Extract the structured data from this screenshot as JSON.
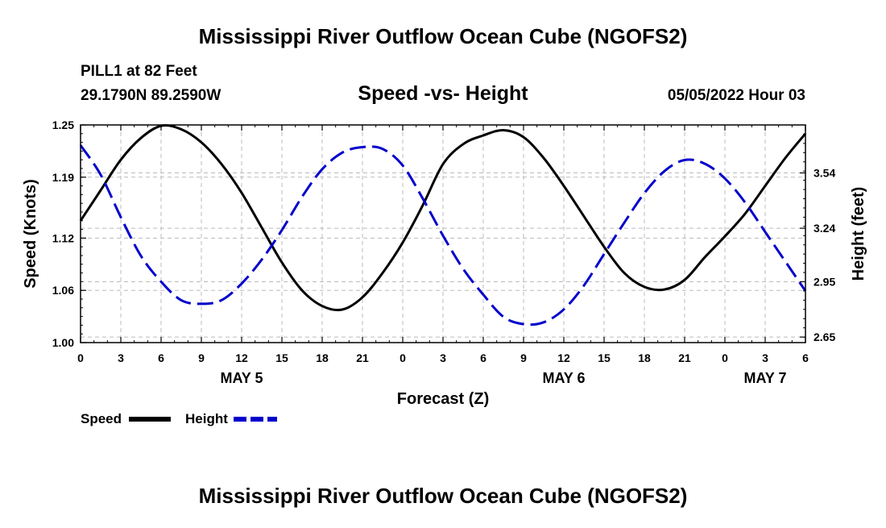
{
  "page": {
    "title": "Mississippi River Outflow Ocean Cube (NGOFS2)",
    "footer_title": "Mississippi River Outflow Ocean Cube (NGOFS2)"
  },
  "station": {
    "name_line": "PILL1 at 82 Feet",
    "coords_line": "29.1790N  89.2590W",
    "datetime": "05/05/2022 Hour 03"
  },
  "chart_data": {
    "type": "line",
    "title": "Speed -vs- Height",
    "xlabel": "Forecast (Z)",
    "ylabel_left": "Speed (Knots)",
    "ylabel_right": "Height (feet)",
    "x_range": [
      0,
      54
    ],
    "x_tick_values": [
      0,
      3,
      6,
      9,
      12,
      15,
      18,
      21,
      24,
      27,
      30,
      33,
      36,
      39,
      42,
      45,
      48,
      51,
      54
    ],
    "x_tick_labels": [
      "0",
      "3",
      "6",
      "9",
      "12",
      "15",
      "18",
      "21",
      "0",
      "3",
      "6",
      "9",
      "12",
      "15",
      "18",
      "21",
      "0",
      "3",
      "6"
    ],
    "date_labels": [
      {
        "label": "MAY 5",
        "at": 12
      },
      {
        "label": "MAY 6",
        "at": 36
      },
      {
        "label": "MAY 7",
        "at": 51
      }
    ],
    "y_left": {
      "range": [
        1.0,
        1.25
      ],
      "ticks": [
        1.0,
        1.06,
        1.12,
        1.19,
        1.25
      ],
      "tick_labels": [
        "1.00",
        "1.06",
        "1.12",
        "1.19",
        "1.25"
      ]
    },
    "y_right": {
      "range": [
        2.62,
        3.8
      ],
      "ticks": [
        2.65,
        2.95,
        3.24,
        3.54
      ],
      "tick_labels": [
        "2.65",
        "2.95",
        "3.24",
        "3.54"
      ]
    },
    "grid": true,
    "legend_position": "bottom-left",
    "series": [
      {
        "name": "Speed",
        "axis": "left",
        "color": "#000000",
        "style": "solid",
        "x": [
          0,
          1.5,
          3,
          4.5,
          6,
          7.5,
          9,
          10.5,
          12,
          13.5,
          15,
          16.5,
          18,
          19.5,
          21,
          22.5,
          24,
          25.5,
          27,
          28.5,
          30,
          31.5,
          33,
          34.5,
          36,
          37.5,
          39,
          40.5,
          42,
          43.5,
          45,
          46.5,
          48,
          49.5,
          51,
          52.5,
          54
        ],
        "values": [
          1.14,
          1.175,
          1.21,
          1.235,
          1.249,
          1.245,
          1.23,
          1.205,
          1.172,
          1.132,
          1.092,
          1.06,
          1.042,
          1.038,
          1.052,
          1.08,
          1.115,
          1.158,
          1.205,
          1.228,
          1.238,
          1.244,
          1.236,
          1.212,
          1.18,
          1.145,
          1.11,
          1.08,
          1.064,
          1.061,
          1.072,
          1.098,
          1.122,
          1.148,
          1.18,
          1.212,
          1.24
        ]
      },
      {
        "name": "Height",
        "axis": "right",
        "color": "#0000cc",
        "style": "dashed",
        "x": [
          0,
          1.5,
          3,
          4.5,
          6,
          7.5,
          9,
          10.5,
          12,
          13.5,
          15,
          16.5,
          18,
          19.5,
          21,
          22.5,
          24,
          25.5,
          27,
          28.5,
          30,
          31.5,
          33,
          34.5,
          36,
          37.5,
          39,
          40.5,
          42,
          43.5,
          45,
          46.5,
          48,
          49.5,
          51,
          52.5,
          54
        ],
        "values": [
          3.69,
          3.53,
          3.3,
          3.09,
          2.95,
          2.85,
          2.83,
          2.85,
          2.94,
          3.07,
          3.23,
          3.41,
          3.56,
          3.65,
          3.68,
          3.67,
          3.58,
          3.4,
          3.2,
          3.02,
          2.88,
          2.76,
          2.72,
          2.73,
          2.8,
          2.93,
          3.1,
          3.27,
          3.43,
          3.55,
          3.61,
          3.59,
          3.51,
          3.38,
          3.22,
          3.06,
          2.9
        ]
      }
    ],
    "legend": [
      {
        "name": "Speed",
        "color": "#000000",
        "style": "solid"
      },
      {
        "name": "Height",
        "color": "#0000cc",
        "style": "dashed"
      }
    ]
  }
}
